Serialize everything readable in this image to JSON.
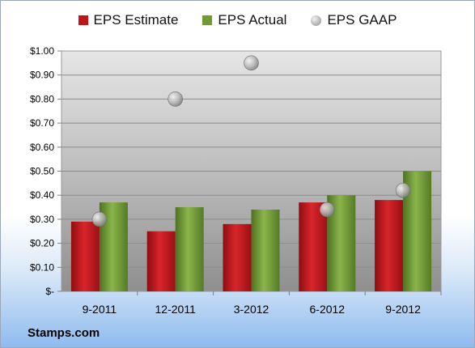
{
  "chart_data": {
    "type": "bar",
    "categories": [
      "9-2011",
      "12-2011",
      "3-2012",
      "6-2012",
      "9-2012"
    ],
    "series": [
      {
        "name": "EPS Estimate",
        "kind": "bar",
        "color": "#c0161b",
        "values": [
          0.29,
          0.25,
          0.28,
          0.37,
          0.38
        ]
      },
      {
        "name": "EPS Actual",
        "kind": "bar",
        "color": "#6f9a35",
        "values": [
          0.37,
          0.35,
          0.34,
          0.4,
          0.5
        ]
      },
      {
        "name": "EPS GAAP",
        "kind": "scatter",
        "color": "#a6a6a6",
        "values": [
          0.3,
          0.8,
          0.95,
          0.34,
          0.42
        ]
      }
    ],
    "ylim": [
      0,
      1.0
    ],
    "ytick_values": [
      0,
      0.1,
      0.2,
      0.3,
      0.4,
      0.5,
      0.6,
      0.7,
      0.8,
      0.9,
      1.0
    ],
    "ytick_labels": [
      "$-",
      "$0.10",
      "$0.20",
      "$0.30",
      "$0.40",
      "$0.50",
      "$0.60",
      "$0.70",
      "$0.80",
      "$0.90",
      "$1.00"
    ],
    "grid": true,
    "legend_position": "top"
  },
  "footer": {
    "company": "Stamps.com"
  }
}
